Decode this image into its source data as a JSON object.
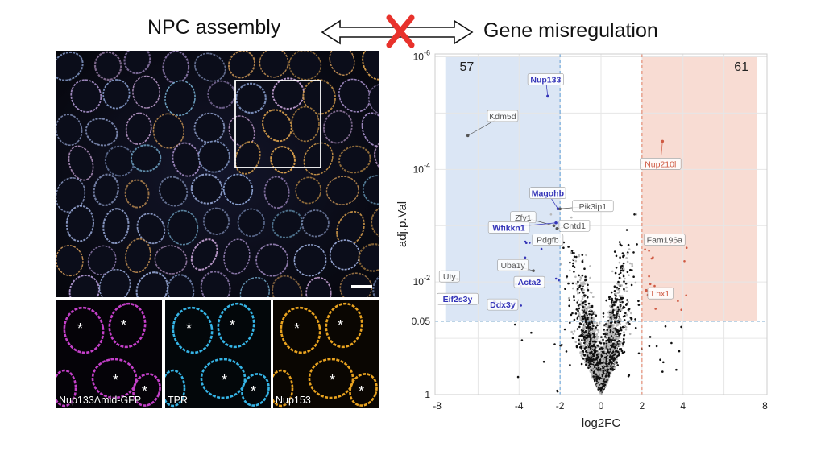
{
  "header": {
    "left_title": "NPC assembly",
    "right_title": "Gene misregulation",
    "arrow_icon": "double-arrow-icon",
    "cross_icon": "red-x-icon",
    "cross_color": "#e8322c"
  },
  "micrograph": {
    "insets": [
      {
        "label": "Nup133Δmid-GFP",
        "color": "#c33fc8"
      },
      {
        "label": "TPR",
        "color": "#35b4e6"
      },
      {
        "label": "Nup153",
        "color": "#e8a21f"
      }
    ],
    "asterisk": "*",
    "scale_bar_icon": "scale-bar-icon"
  },
  "chart_data": {
    "type": "scatter",
    "xlabel": "log2FC",
    "ylabel": "adj.p.Val",
    "x_ticks": [
      "-8",
      "-4",
      "-2",
      "0",
      "2",
      "4",
      "8"
    ],
    "y_ticks": [
      {
        "base": "10",
        "exp": "-6"
      },
      {
        "base": "10",
        "exp": "-4"
      },
      {
        "base": "10",
        "exp": "-2"
      },
      {
        "base": "0.05",
        "exp": ""
      },
      {
        "base": "1",
        "exp": ""
      }
    ],
    "xlim": [
      -8.1,
      8.1
    ],
    "y_scale": "-log10",
    "ylim_neglog10": [
      0,
      6.05
    ],
    "thresholds": {
      "log2fc": [
        -2,
        2
      ],
      "p": 0.05
    },
    "counts": {
      "down": "57",
      "up": "61"
    },
    "colors": {
      "down": "#3535b8",
      "up": "#cf5a43",
      "neutral": "#555555",
      "down_region": "#dbe6f5",
      "up_region": "#f8dcd3"
    },
    "genes": [
      {
        "name": "Nup133",
        "x": -2.6,
        "y": 5.3,
        "group": "down"
      },
      {
        "name": "Kdm5d",
        "x": -6.5,
        "y": 4.6,
        "group": "neutral"
      },
      {
        "name": "Nup210l",
        "x": 3.0,
        "y": 4.5,
        "group": "up"
      },
      {
        "name": "Magohb",
        "x": -2.1,
        "y": 3.3,
        "group": "down"
      },
      {
        "name": "Pik3ip1",
        "x": -2.0,
        "y": 3.3,
        "group": "neutral"
      },
      {
        "name": "Zfy1",
        "x": -2.3,
        "y": 3.0,
        "group": "neutral"
      },
      {
        "name": "Wfikkn1",
        "x": -2.2,
        "y": 3.05,
        "group": "down"
      },
      {
        "name": "Cntd1",
        "x": -2.15,
        "y": 2.95,
        "group": "neutral"
      },
      {
        "name": "Fam196a",
        "x": 2.35,
        "y": 2.75,
        "group": "neutral"
      },
      {
        "name": "Pdgfb",
        "x": -2.4,
        "y": 2.75,
        "group": "neutral"
      },
      {
        "name": "Uba1y",
        "x": -3.3,
        "y": 2.2,
        "group": "neutral"
      },
      {
        "name": "Uty",
        "x": -7.0,
        "y": 2.05,
        "group": "neutral"
      },
      {
        "name": "Acta2",
        "x": -3.1,
        "y": 2.0,
        "group": "down"
      },
      {
        "name": "Lhx1",
        "x": 2.2,
        "y": 1.85,
        "group": "up"
      },
      {
        "name": "Eif2s3y",
        "x": -7.1,
        "y": 1.75,
        "group": "down"
      },
      {
        "name": "Ddx3y",
        "x": -5.2,
        "y": 1.65,
        "group": "down"
      }
    ]
  }
}
